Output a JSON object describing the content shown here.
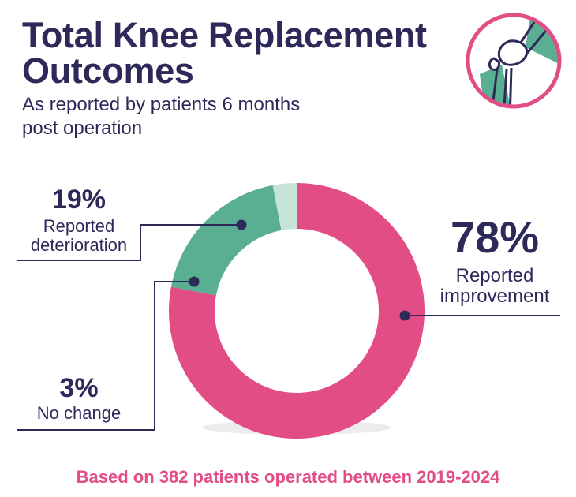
{
  "header": {
    "title_line1": "Total Knee Replacement",
    "title_line2": "Outcomes",
    "subtitle_line1": "As reported by patients 6 months",
    "subtitle_line2": "post operation"
  },
  "icon": {
    "name": "knee-joint-icon"
  },
  "colors": {
    "improvement": "#e24d86",
    "deterioration": "#5aae92",
    "no_change": "#c6e5d8",
    "text": "#2d2a5a"
  },
  "chart_data": {
    "type": "pie",
    "donut": true,
    "categories": [
      "Reported improvement",
      "Reported deterioration",
      "No change"
    ],
    "values": [
      78,
      19,
      3
    ],
    "value_labels": [
      "78%",
      "19%",
      "3%"
    ],
    "label_lines": [
      [
        "Reported",
        "improvement"
      ],
      [
        "Reported",
        "deterioration"
      ],
      [
        "No change"
      ]
    ]
  },
  "footnote": "Based on 382 patients operated between 2019-2024"
}
